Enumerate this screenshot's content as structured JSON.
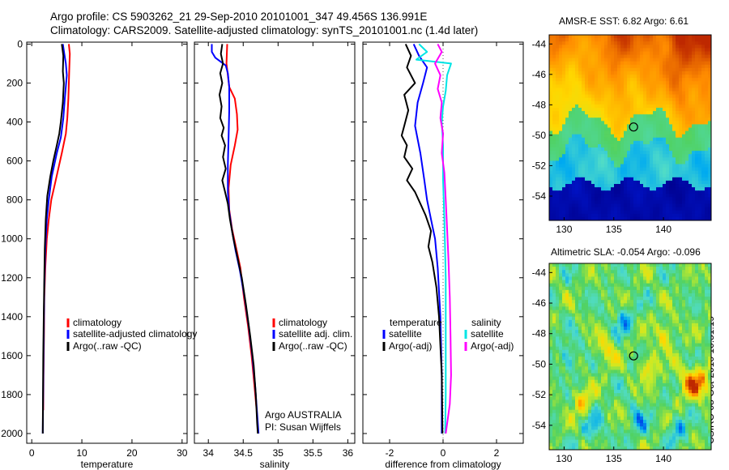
{
  "title_line1": "Argo profile: CS 5903262_21 29-Sep-2010 20101001_347 49.456S 136.991E",
  "title_line2": "Climatology: CARS2009. Satellite-adjusted climatology: synTS_20101001.nc (1.4d later)",
  "colors": {
    "climatology": "#ff0000",
    "satellite": "#0000ff",
    "argo": "#000000",
    "sal_satellite": "#00e5e5",
    "sal_argo": "#ff00ff",
    "marker": "#000000"
  },
  "chart_data": [
    {
      "type": "line",
      "id": "temperature",
      "xlabel": "temperature",
      "ylabel": "",
      "xlim": [
        -1,
        31
      ],
      "ylim": [
        2050,
        -10
      ],
      "xticks": [
        0,
        10,
        20,
        30
      ],
      "yticks": [
        0,
        200,
        400,
        600,
        800,
        1000,
        1200,
        1400,
        1600,
        1800,
        2000
      ],
      "legend": {
        "placement": "lower-right",
        "entries": [
          "climatology",
          "satellite-adjusted climatology",
          "Argo(..raw -QC)"
        ]
      },
      "series": [
        {
          "name": "climatology",
          "color_key": "climatology",
          "points": [
            [
              7.4,
              0
            ],
            [
              7.6,
              50
            ],
            [
              7.5,
              120
            ],
            [
              7.4,
              200
            ],
            [
              7.3,
              280
            ],
            [
              7.1,
              380
            ],
            [
              6.8,
              460
            ],
            [
              6.0,
              560
            ],
            [
              5.3,
              640
            ],
            [
              4.6,
              720
            ],
            [
              3.9,
              800
            ],
            [
              3.4,
              900
            ],
            [
              3.0,
              1000
            ],
            [
              2.7,
              1150
            ],
            [
              2.5,
              1300
            ],
            [
              2.45,
              1500
            ],
            [
              2.35,
              1700
            ],
            [
              2.3,
              1880
            ]
          ]
        },
        {
          "name": "satellite-adjusted climatology",
          "color_key": "satellite",
          "points": [
            [
              6.2,
              0
            ],
            [
              6.5,
              50
            ],
            [
              6.8,
              100
            ],
            [
              7.0,
              160
            ],
            [
              6.6,
              280
            ],
            [
              6.3,
              380
            ],
            [
              5.8,
              480
            ],
            [
              5.0,
              560
            ],
            [
              4.0,
              680
            ],
            [
              3.4,
              800
            ],
            [
              3.0,
              900
            ],
            [
              2.7,
              1050
            ],
            [
              2.5,
              1250
            ],
            [
              2.4,
              1500
            ],
            [
              2.3,
              1750
            ],
            [
              2.2,
              2000
            ]
          ]
        },
        {
          "name": "Argo(..raw -QC)",
          "color_key": "argo",
          "points": [
            [
              6.0,
              0
            ],
            [
              6.3,
              60
            ],
            [
              6.2,
              140
            ],
            [
              6.4,
              200
            ],
            [
              6.2,
              300
            ],
            [
              5.8,
              400
            ],
            [
              5.5,
              460
            ],
            [
              5.0,
              520
            ],
            [
              4.3,
              600
            ],
            [
              3.7,
              680
            ],
            [
              3.1,
              780
            ],
            [
              2.8,
              900
            ],
            [
              2.6,
              1050
            ],
            [
              2.5,
              1200
            ],
            [
              2.4,
              1400
            ],
            [
              2.3,
              1600
            ],
            [
              2.25,
              1800
            ],
            [
              2.2,
              2000
            ]
          ]
        }
      ]
    },
    {
      "type": "line",
      "id": "salinity",
      "xlabel": "salinity",
      "ylabel": "",
      "xlim": [
        33.8,
        36.1
      ],
      "ylim": [
        2050,
        -10
      ],
      "xticks": [
        34,
        34.5,
        35,
        35.5,
        36
      ],
      "legend": {
        "placement": "lower-right",
        "entries": [
          "climatology",
          "satellite adj. clim.",
          "Argo(..raw -QC)"
        ]
      },
      "annotation_lines": [
        "Argo AUSTRALIA",
        "PI: Susan Wijffels"
      ],
      "series": [
        {
          "name": "climatology",
          "color_key": "climatology",
          "points": [
            [
              34.27,
              0
            ],
            [
              34.26,
              100
            ],
            [
              34.3,
              220
            ],
            [
              34.38,
              280
            ],
            [
              34.41,
              360
            ],
            [
              34.42,
              440
            ],
            [
              34.38,
              520
            ],
            [
              34.32,
              620
            ],
            [
              34.29,
              740
            ],
            [
              34.3,
              850
            ],
            [
              34.34,
              950
            ],
            [
              34.4,
              1050
            ],
            [
              34.46,
              1150
            ],
            [
              34.51,
              1300
            ],
            [
              34.57,
              1450
            ],
            [
              34.62,
              1600
            ],
            [
              34.66,
              1750
            ],
            [
              34.69,
              1870
            ]
          ]
        },
        {
          "name": "satellite adj. clim.",
          "color_key": "satellite",
          "points": [
            [
              34.05,
              0
            ],
            [
              34.05,
              40
            ],
            [
              34.1,
              70
            ],
            [
              34.25,
              110
            ],
            [
              34.28,
              150
            ],
            [
              34.3,
              220
            ],
            [
              34.3,
              340
            ],
            [
              34.29,
              480
            ],
            [
              34.28,
              620
            ],
            [
              34.28,
              760
            ],
            [
              34.3,
              860
            ],
            [
              34.34,
              960
            ],
            [
              34.39,
              1060
            ],
            [
              34.45,
              1160
            ],
            [
              34.52,
              1300
            ],
            [
              34.58,
              1450
            ],
            [
              34.63,
              1600
            ],
            [
              34.67,
              1750
            ],
            [
              34.7,
              1900
            ],
            [
              34.72,
              2000
            ]
          ]
        },
        {
          "name": "Argo(..raw -QC)",
          "color_key": "argo",
          "points": [
            [
              34.2,
              0
            ],
            [
              34.18,
              50
            ],
            [
              34.21,
              100
            ],
            [
              34.17,
              150
            ],
            [
              34.2,
              200
            ],
            [
              34.16,
              260
            ],
            [
              34.19,
              320
            ],
            [
              34.17,
              380
            ],
            [
              34.22,
              430
            ],
            [
              34.19,
              470
            ],
            [
              34.24,
              520
            ],
            [
              34.21,
              580
            ],
            [
              34.25,
              640
            ],
            [
              34.2,
              700
            ],
            [
              34.24,
              760
            ],
            [
              34.28,
              820
            ],
            [
              34.31,
              900
            ],
            [
              34.36,
              1000
            ],
            [
              34.42,
              1100
            ],
            [
              34.48,
              1200
            ],
            [
              34.54,
              1340
            ],
            [
              34.6,
              1500
            ],
            [
              34.65,
              1650
            ],
            [
              34.68,
              1800
            ],
            [
              34.7,
              1950
            ],
            [
              34.71,
              2000
            ]
          ]
        }
      ]
    },
    {
      "type": "line",
      "id": "difference",
      "xlabel": "difference from climatology",
      "ylabel": "",
      "xlim": [
        -3,
        3
      ],
      "ylim": [
        2050,
        -10
      ],
      "xticks": [
        -2,
        0,
        2
      ],
      "reference_line_x": 0,
      "legend": {
        "placement": "lower-center",
        "temperature_header": "temperature",
        "salinity_header": "salinity",
        "entries": [
          "satellite",
          "Argo(-adj)",
          "satellite",
          "Argo(-adj)"
        ]
      },
      "series": [
        {
          "name": "temperature satellite",
          "color_key": "satellite",
          "points": [
            [
              -1.1,
              0
            ],
            [
              -0.9,
              60
            ],
            [
              -0.6,
              120
            ],
            [
              -0.75,
              200
            ],
            [
              -0.95,
              300
            ],
            [
              -1.05,
              420
            ],
            [
              -0.85,
              560
            ],
            [
              -0.7,
              700
            ],
            [
              -0.6,
              800
            ],
            [
              -0.45,
              900
            ],
            [
              -0.3,
              1000
            ],
            [
              -0.2,
              1150
            ],
            [
              -0.1,
              1400
            ],
            [
              -0.05,
              1700
            ],
            [
              -0.05,
              2000
            ]
          ]
        },
        {
          "name": "temperature Argo(-adj)",
          "color_key": "argo",
          "points": [
            [
              -1.4,
              0
            ],
            [
              -1.2,
              60
            ],
            [
              -1.35,
              120
            ],
            [
              -1.05,
              200
            ],
            [
              -1.45,
              260
            ],
            [
              -1.3,
              340
            ],
            [
              -1.45,
              420
            ],
            [
              -1.55,
              470
            ],
            [
              -1.35,
              520
            ],
            [
              -1.45,
              580
            ],
            [
              -1.15,
              640
            ],
            [
              -1.35,
              700
            ],
            [
              -1.05,
              760
            ],
            [
              -0.85,
              820
            ],
            [
              -0.65,
              880
            ],
            [
              -0.45,
              960
            ],
            [
              -0.55,
              1040
            ],
            [
              -0.4,
              1120
            ],
            [
              -0.25,
              1250
            ],
            [
              -0.15,
              1400
            ],
            [
              -0.05,
              1700
            ],
            [
              -0.02,
              2000
            ]
          ]
        },
        {
          "name": "salinity satellite",
          "color_key": "sal_satellite",
          "points": [
            [
              -0.9,
              0
            ],
            [
              -0.6,
              40
            ],
            [
              -1.0,
              80
            ],
            [
              0.3,
              100
            ],
            [
              0.15,
              160
            ],
            [
              0.1,
              240
            ],
            [
              0.0,
              320
            ],
            [
              -0.05,
              400
            ],
            [
              0.0,
              520
            ],
            [
              0.0,
              700
            ],
            [
              0.05,
              900
            ],
            [
              0.1,
              1200
            ],
            [
              0.1,
              1500
            ],
            [
              0.1,
              1800
            ],
            [
              0.08,
              2000
            ]
          ]
        },
        {
          "name": "salinity Argo(-adj)",
          "color_key": "sal_argo",
          "points": [
            [
              -0.2,
              0
            ],
            [
              -0.05,
              40
            ],
            [
              -0.3,
              100
            ],
            [
              -0.1,
              160
            ],
            [
              -0.2,
              230
            ],
            [
              -0.05,
              300
            ],
            [
              -0.1,
              380
            ],
            [
              0.0,
              460
            ],
            [
              -0.05,
              560
            ],
            [
              0.05,
              660
            ],
            [
              0.1,
              800
            ],
            [
              0.15,
              950
            ],
            [
              0.2,
              1100
            ],
            [
              0.25,
              1300
            ],
            [
              0.28,
              1500
            ],
            [
              0.3,
              1700
            ],
            [
              0.25,
              1850
            ],
            [
              0.1,
              2000
            ]
          ]
        }
      ]
    },
    {
      "type": "heatmap",
      "id": "sst-map",
      "title": "AMSR-E SST: 6.82  Argo: 6.61",
      "xlim": [
        128.5,
        144.8
      ],
      "ylim": [
        -55.6,
        -43.4
      ],
      "xticks": [
        130,
        135,
        140
      ],
      "yticks": [
        -44,
        -46,
        -48,
        -50,
        -52,
        -54
      ],
      "marker": {
        "lon": 136.991,
        "lat": -49.456
      }
    },
    {
      "type": "heatmap",
      "id": "sla-map",
      "title": "Altimetric SLA: -0.054  Argo: -0.096",
      "xlim": [
        128.5,
        144.8
      ],
      "ylim": [
        -55.6,
        -43.4
      ],
      "xticks": [
        130,
        135,
        140
      ],
      "yticks": [
        -44,
        -46,
        -48,
        -50,
        -52,
        -54
      ],
      "marker": {
        "lon": 136.991,
        "lat": -49.456
      },
      "side_label": "CSIRO 08-Oct-2010 10:31:19"
    }
  ]
}
